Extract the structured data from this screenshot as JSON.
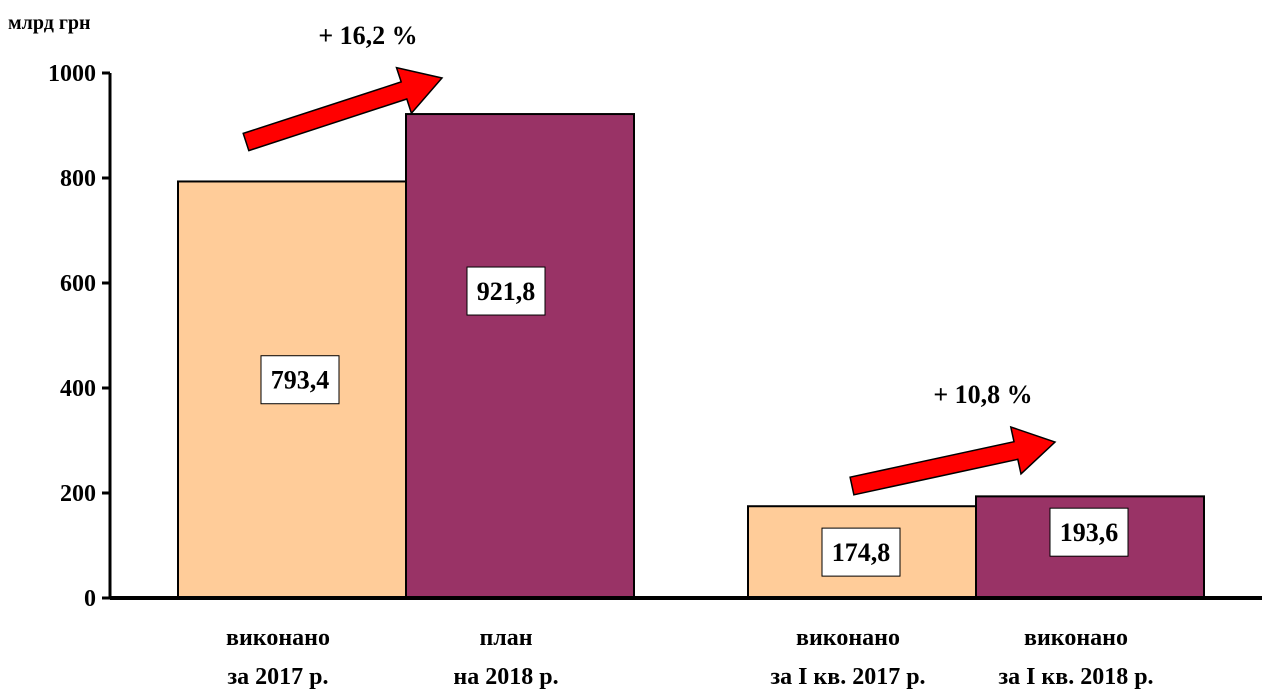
{
  "chart_data": {
    "type": "bar",
    "unit_label": "млрд грн",
    "ylim": [
      0,
      1000
    ],
    "yticks": [
      "0",
      "200",
      "400",
      "600",
      "800",
      "1000"
    ],
    "grid": false,
    "legend": "none",
    "categories": [
      [
        "виконано",
        "за 2017 р."
      ],
      [
        "план",
        "на 2018 р."
      ],
      [
        "виконано",
        "за І кв. 2017 р."
      ],
      [
        "виконано",
        "за І кв. 2018 р."
      ]
    ],
    "values": [
      793.4,
      921.8,
      174.8,
      193.6
    ],
    "value_labels": [
      "793,4",
      "921,8",
      "174,8",
      "193,6"
    ],
    "colors": [
      "#FFCC99",
      "#993366",
      "#FFCC99",
      "#993366"
    ],
    "annotations": [
      {
        "text": "+ 16,2 %",
        "from": 0,
        "to": 1
      },
      {
        "text": "+ 10,8 %",
        "from": 2,
        "to": 3
      }
    ],
    "arrow_color": "#FF0000"
  }
}
